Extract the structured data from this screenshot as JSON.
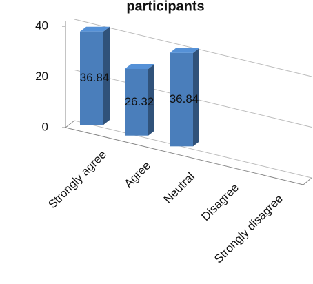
{
  "chart_data": {
    "type": "bar3d",
    "title": "participants",
    "categories": [
      "Strongly agree",
      "Agree",
      "Neutral",
      "Disagree",
      "Strongly disagree"
    ],
    "values": [
      36.84,
      26.32,
      36.84,
      null,
      null
    ],
    "color": "#4a7ebb",
    "ylim": [
      0,
      40
    ],
    "yticks": [
      0,
      20,
      40
    ],
    "grid": true
  }
}
